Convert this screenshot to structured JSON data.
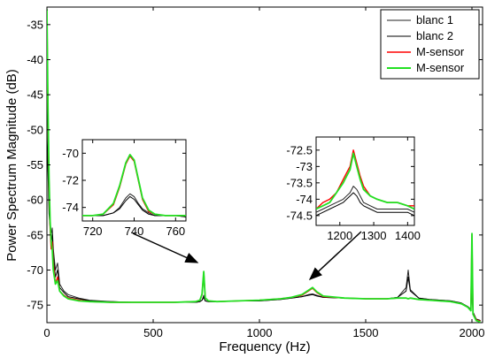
{
  "colors": {
    "blanc1": "#222222",
    "blanc2": "#000000",
    "msensor_red": "#ff0000",
    "msensor_green": "#22e022",
    "background": "#ffffff",
    "axis": "#000000"
  },
  "chart_data": [
    {
      "type": "line",
      "xlabel": "Frequency (Hz)",
      "ylabel": "Power Spectrum Magnitude (dB)",
      "xlim": [
        0,
        2050
      ],
      "ylim": [
        -77.5,
        -32.5
      ],
      "xticks": [
        0,
        500,
        1000,
        1500,
        2000
      ],
      "yticks": [
        -35,
        -40,
        -45,
        -50,
        -55,
        -60,
        -65,
        -70,
        -75
      ],
      "legend_position": "top-right",
      "grid": false,
      "series": [
        {
          "name": "blanc 1",
          "color": "#222222",
          "x": [
            0,
            5,
            10,
            15,
            20,
            25,
            30,
            40,
            50,
            60,
            80,
            100,
            150,
            200,
            300,
            400,
            500,
            600,
            700,
            720,
            730,
            738,
            745,
            760,
            800,
            900,
            1000,
            1100,
            1150,
            1200,
            1230,
            1250,
            1270,
            1300,
            1400,
            1500,
            1600,
            1650,
            1690,
            1700,
            1710,
            1750,
            1800,
            1900,
            1950,
            1980,
            1995,
            2000,
            2005,
            2020,
            2040
          ],
          "values": [
            -52,
            -55,
            -60,
            -63,
            -65,
            -64,
            -67,
            -70,
            -69,
            -72,
            -73,
            -73.5,
            -74,
            -74.3,
            -74.5,
            -74.6,
            -74.6,
            -74.6,
            -74.6,
            -74.5,
            -74.3,
            -73.6,
            -74.4,
            -74.5,
            -74.5,
            -74.4,
            -74.4,
            -74.2,
            -74.0,
            -73.8,
            -73.5,
            -73.4,
            -73.6,
            -73.9,
            -74.0,
            -74.1,
            -74.1,
            -73.9,
            -72.5,
            -70.0,
            -72.8,
            -74.0,
            -74.2,
            -74.4,
            -74.7,
            -75.2,
            -75.6,
            -72.0,
            -76.0,
            -77.0,
            -77.2
          ]
        },
        {
          "name": "blanc 2",
          "color": "#000000",
          "x": [
            0,
            5,
            10,
            15,
            20,
            25,
            30,
            40,
            50,
            60,
            80,
            100,
            150,
            200,
            300,
            400,
            500,
            600,
            700,
            720,
            730,
            738,
            745,
            760,
            800,
            900,
            1000,
            1100,
            1150,
            1200,
            1230,
            1250,
            1270,
            1300,
            1400,
            1500,
            1600,
            1650,
            1690,
            1700,
            1710,
            1750,
            1800,
            1900,
            1950,
            1980,
            1995,
            2000,
            2005,
            2020,
            2040
          ],
          "values": [
            -50,
            -56,
            -62,
            -64,
            -66,
            -65,
            -68,
            -71,
            -70,
            -72.5,
            -73.2,
            -73.8,
            -74.1,
            -74.4,
            -74.5,
            -74.6,
            -74.6,
            -74.6,
            -74.6,
            -74.5,
            -74.3,
            -73.9,
            -74.4,
            -74.5,
            -74.5,
            -74.4,
            -74.4,
            -74.2,
            -74.0,
            -73.8,
            -73.6,
            -73.5,
            -73.7,
            -73.9,
            -74.0,
            -74.1,
            -74.1,
            -73.9,
            -73.0,
            -71.0,
            -73.0,
            -74.0,
            -74.2,
            -74.4,
            -74.7,
            -75.2,
            -75.6,
            -73.0,
            -76.0,
            -77.0,
            -77.2
          ]
        },
        {
          "name": "M-sensor",
          "color": "#ff0000",
          "x": [
            0,
            5,
            10,
            15,
            20,
            25,
            30,
            40,
            50,
            60,
            80,
            100,
            150,
            200,
            300,
            400,
            500,
            600,
            700,
            720,
            730,
            738,
            745,
            760,
            800,
            900,
            1000,
            1100,
            1150,
            1200,
            1230,
            1250,
            1270,
            1300,
            1400,
            1500,
            1600,
            1650,
            1690,
            1700,
            1710,
            1750,
            1800,
            1900,
            1950,
            1980,
            1995,
            2000,
            2005,
            2020,
            2040
          ],
          "values": [
            -33,
            -48,
            -58,
            -64,
            -67,
            -66,
            -69,
            -72,
            -71,
            -73,
            -73.6,
            -74.0,
            -74.3,
            -74.5,
            -74.6,
            -74.6,
            -74.6,
            -74.6,
            -74.5,
            -74.3,
            -73.5,
            -70.3,
            -74.0,
            -74.4,
            -74.5,
            -74.4,
            -74.3,
            -74.1,
            -73.9,
            -73.6,
            -73.0,
            -72.6,
            -73.2,
            -73.8,
            -74.0,
            -74.1,
            -74.1,
            -74.0,
            -74.0,
            -74.1,
            -74.0,
            -74.2,
            -74.3,
            -74.5,
            -74.8,
            -75.3,
            -75.7,
            -65.0,
            -76.2,
            -77.1,
            -77.3
          ]
        },
        {
          "name": "M-sensor",
          "color": "#22e022",
          "x": [
            0,
            5,
            10,
            15,
            20,
            25,
            30,
            40,
            50,
            60,
            80,
            100,
            150,
            200,
            300,
            400,
            500,
            600,
            700,
            720,
            730,
            738,
            745,
            760,
            800,
            900,
            1000,
            1100,
            1150,
            1200,
            1230,
            1250,
            1270,
            1300,
            1400,
            1500,
            1600,
            1650,
            1690,
            1700,
            1710,
            1750,
            1800,
            1900,
            1950,
            1980,
            1995,
            2000,
            2005,
            2020,
            2040
          ],
          "values": [
            -32.8,
            -47,
            -57,
            -63,
            -66,
            -67,
            -70,
            -72,
            -71.5,
            -73,
            -73.7,
            -74.1,
            -74.4,
            -74.5,
            -74.6,
            -74.6,
            -74.6,
            -74.6,
            -74.5,
            -74.3,
            -73.4,
            -70.2,
            -74.0,
            -74.4,
            -74.5,
            -74.4,
            -74.3,
            -74.1,
            -73.9,
            -73.5,
            -72.9,
            -72.5,
            -73.1,
            -73.7,
            -74.0,
            -74.1,
            -74.1,
            -74.0,
            -74.0,
            -74.1,
            -74.0,
            -74.2,
            -74.3,
            -74.5,
            -74.8,
            -75.3,
            -75.8,
            -64.8,
            -76.3,
            -77.2,
            -77.4
          ]
        }
      ]
    },
    {
      "type": "line",
      "role": "inset-left",
      "xlim": [
        715,
        765
      ],
      "ylim": [
        -75,
        -69
      ],
      "xticks": [
        720,
        740,
        760
      ],
      "yticks": [
        -70,
        -72,
        -74
      ],
      "series": [
        {
          "name": "blanc 1",
          "color": "#222222",
          "x": [
            715,
            720,
            725,
            730,
            733,
            736,
            738,
            740,
            742,
            744,
            747,
            750,
            755,
            760,
            765
          ],
          "values": [
            -74.6,
            -74.6,
            -74.6,
            -74.4,
            -74.0,
            -73.3,
            -73.0,
            -73.2,
            -73.7,
            -74.1,
            -74.4,
            -74.6,
            -74.6,
            -74.6,
            -74.7
          ]
        },
        {
          "name": "blanc 2",
          "color": "#000000",
          "x": [
            715,
            720,
            725,
            730,
            733,
            736,
            738,
            740,
            742,
            744,
            747,
            750,
            755,
            760,
            765
          ],
          "values": [
            -74.6,
            -74.6,
            -74.6,
            -74.4,
            -74.1,
            -73.5,
            -73.2,
            -73.4,
            -73.8,
            -74.2,
            -74.5,
            -74.6,
            -74.6,
            -74.6,
            -74.7
          ]
        },
        {
          "name": "M-sensor",
          "color": "#ff0000",
          "x": [
            715,
            720,
            725,
            730,
            733,
            736,
            738,
            740,
            742,
            744,
            747,
            750,
            755,
            760,
            765
          ],
          "values": [
            -74.6,
            -74.6,
            -74.5,
            -73.8,
            -72.5,
            -70.8,
            -70.2,
            -70.6,
            -72.0,
            -73.4,
            -74.3,
            -74.5,
            -74.6,
            -74.6,
            -74.6
          ]
        },
        {
          "name": "M-sensor",
          "color": "#22e022",
          "x": [
            715,
            720,
            725,
            730,
            733,
            736,
            738,
            740,
            742,
            744,
            747,
            750,
            755,
            760,
            765
          ],
          "values": [
            -74.6,
            -74.6,
            -74.5,
            -73.7,
            -72.4,
            -70.7,
            -70.1,
            -70.5,
            -71.9,
            -73.3,
            -74.2,
            -74.5,
            -74.6,
            -74.6,
            -74.6
          ]
        }
      ]
    },
    {
      "type": "line",
      "role": "inset-right",
      "xlim": [
        1130,
        1420
      ],
      "ylim": [
        -74.8,
        -72.1
      ],
      "xticks": [
        1200,
        1300,
        1400
      ],
      "yticks": [
        -72.5,
        -73,
        -73.5,
        -74,
        -74.5
      ],
      "series": [
        {
          "name": "blanc 1",
          "color": "#222222",
          "x": [
            1130,
            1150,
            1170,
            1190,
            1210,
            1220,
            1230,
            1240,
            1250,
            1260,
            1270,
            1290,
            1310,
            1340,
            1370,
            1400,
            1420
          ],
          "values": [
            -74.4,
            -74.3,
            -74.2,
            -74.1,
            -74.0,
            -73.9,
            -73.8,
            -73.6,
            -73.7,
            -73.9,
            -74.1,
            -74.2,
            -74.3,
            -74.3,
            -74.3,
            -74.3,
            -74.4
          ]
        },
        {
          "name": "blanc 2",
          "color": "#000000",
          "x": [
            1130,
            1150,
            1170,
            1190,
            1210,
            1220,
            1230,
            1240,
            1250,
            1260,
            1270,
            1290,
            1310,
            1340,
            1370,
            1400,
            1420
          ],
          "values": [
            -74.5,
            -74.4,
            -74.3,
            -74.2,
            -74.1,
            -74.0,
            -73.9,
            -73.8,
            -73.9,
            -74.1,
            -74.2,
            -74.3,
            -74.4,
            -74.4,
            -74.4,
            -74.4,
            -74.5
          ]
        },
        {
          "name": "M-sensor",
          "color": "#ff0000",
          "x": [
            1130,
            1150,
            1170,
            1190,
            1210,
            1220,
            1230,
            1240,
            1250,
            1260,
            1270,
            1290,
            1310,
            1340,
            1370,
            1400,
            1420
          ],
          "values": [
            -74.3,
            -74.1,
            -74.0,
            -73.8,
            -73.4,
            -73.2,
            -73.0,
            -72.5,
            -72.9,
            -73.3,
            -73.6,
            -73.9,
            -74.0,
            -74.1,
            -74.1,
            -74.2,
            -74.2
          ]
        },
        {
          "name": "M-sensor",
          "color": "#22e022",
          "x": [
            1130,
            1150,
            1170,
            1190,
            1210,
            1220,
            1230,
            1240,
            1250,
            1260,
            1270,
            1290,
            1310,
            1340,
            1370,
            1400,
            1420
          ],
          "values": [
            -74.3,
            -74.2,
            -74.1,
            -73.8,
            -73.5,
            -73.3,
            -73.1,
            -72.6,
            -73.0,
            -73.4,
            -73.7,
            -73.9,
            -74.0,
            -74.1,
            -74.1,
            -74.2,
            -74.3
          ]
        }
      ]
    }
  ]
}
